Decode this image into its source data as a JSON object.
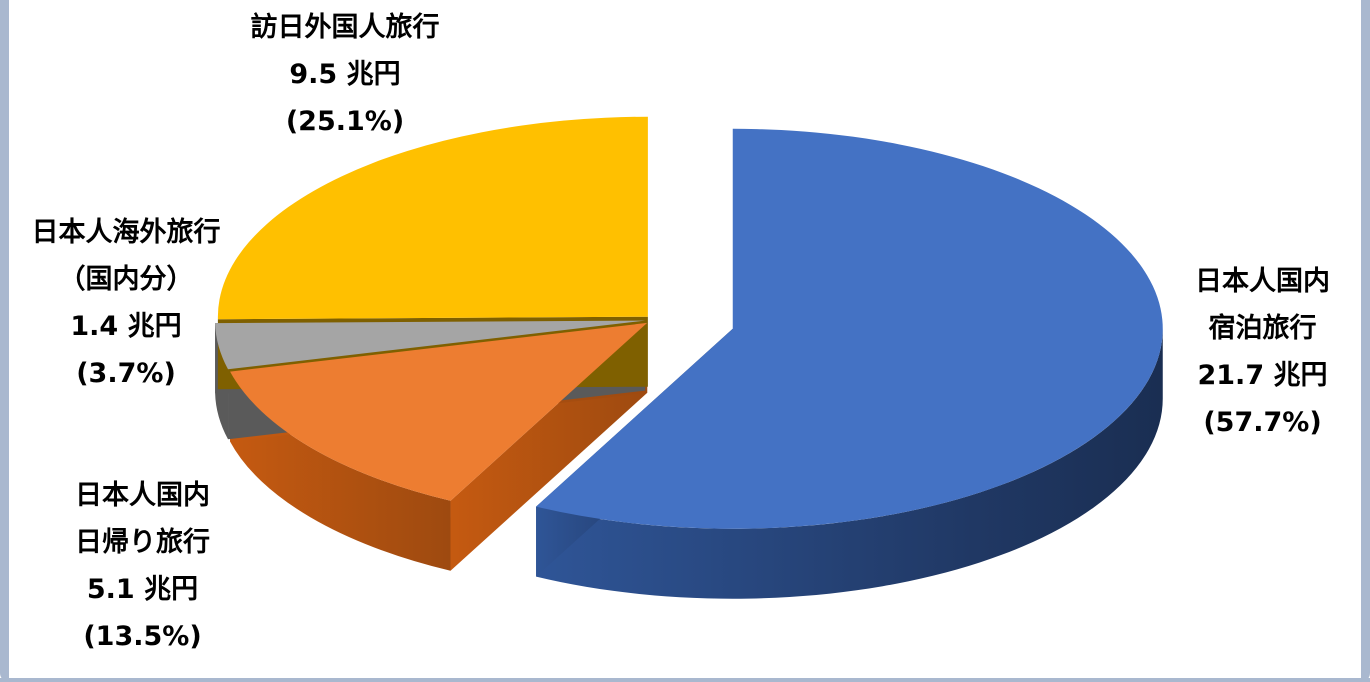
{
  "chart_data": {
    "type": "pie",
    "title": "",
    "unit": "兆円",
    "slices": [
      {
        "name_lines": [
          "日本人国内",
          "宿泊旅行"
        ],
        "value": 21.7,
        "value_text": "21.7 兆円",
        "percent": 57.7,
        "percent_text": "(57.7%)",
        "color": "#4472c4"
      },
      {
        "name_lines": [
          "日本人国内",
          "日帰り旅行"
        ],
        "value": 5.1,
        "value_text": "5.1 兆円",
        "percent": 13.5,
        "percent_text": "(13.5%)",
        "color": "#ed7d31"
      },
      {
        "name_lines": [
          "日本人海外旅行",
          "（国内分）"
        ],
        "value": 1.4,
        "value_text": "1.4 兆円",
        "percent": 3.7,
        "percent_text": "(3.7%)",
        "color": "#a5a5a5"
      },
      {
        "name_lines": [
          "訪日外国人旅行"
        ],
        "value": 9.5,
        "value_text": "9.5 兆円",
        "percent": 25.1,
        "percent_text": "(25.1%)",
        "color": "#ffc000"
      }
    ]
  }
}
